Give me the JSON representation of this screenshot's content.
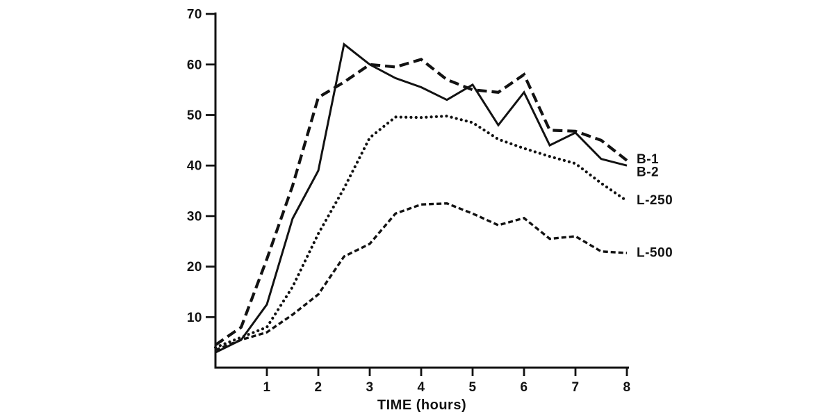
{
  "figure": {
    "background": "#ffffff",
    "ink_color": "#121212"
  },
  "chart_data": {
    "type": "line",
    "title": "",
    "xlabel": "TIME (hours)",
    "ylabel": "",
    "xlim": [
      0,
      8
    ],
    "ylim": [
      0,
      70
    ],
    "grid": false,
    "x_step": 0.5,
    "x_ticks": [
      "1",
      "2",
      "3",
      "4",
      "5",
      "6",
      "7",
      "8"
    ],
    "x_tick_values": [
      1,
      2,
      3,
      4,
      5,
      6,
      7,
      8
    ],
    "y_ticks": [
      "10",
      "20",
      "30",
      "40",
      "50",
      "60",
      "70"
    ],
    "y_tick_values": [
      10,
      20,
      30,
      40,
      50,
      60,
      70
    ],
    "legend_position": "right-of-line-ends",
    "series": [
      {
        "name": "B-1",
        "style": "long-dash",
        "label_y": 41.3,
        "values": [
          4.5,
          8,
          21.5,
          36,
          53.5,
          56.5,
          60,
          59.5,
          61,
          57,
          55,
          54.5,
          58,
          47,
          46.8,
          45,
          41
        ]
      },
      {
        "name": "B-2",
        "style": "solid",
        "label_y": 38.8,
        "values": [
          3,
          5.5,
          12.5,
          29.5,
          39,
          64,
          60,
          57.3,
          55.5,
          53,
          56,
          48,
          54.5,
          44,
          46.5,
          41.3,
          40
        ]
      },
      {
        "name": "L-250",
        "style": "dotted",
        "label_y": 33.2,
        "values": [
          4,
          6,
          8,
          16,
          26.5,
          35.5,
          45.5,
          49.6,
          49.5,
          49.8,
          48.5,
          45.2,
          43.4,
          41.8,
          40.4,
          36.5,
          33
        ]
      },
      {
        "name": "L-500",
        "style": "short-dash",
        "label_y": 22.8,
        "values": [
          3.5,
          5.5,
          7,
          10.5,
          14.5,
          22,
          24.5,
          30.5,
          32.3,
          32.5,
          30.5,
          28.2,
          29.6,
          25.5,
          26,
          23,
          22.7
        ]
      }
    ]
  }
}
